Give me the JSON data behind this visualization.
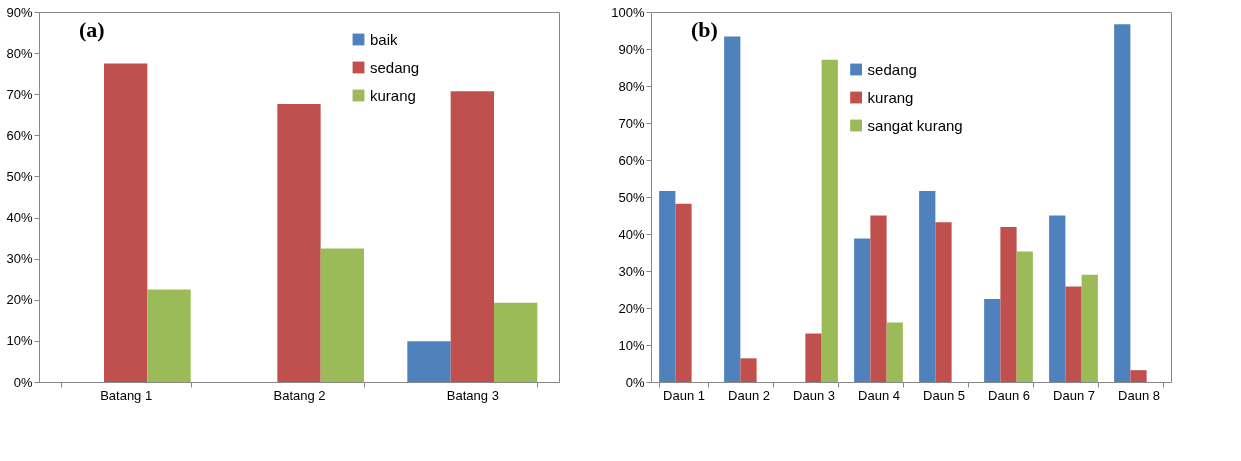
{
  "chart_data": [
    {
      "type": "bar",
      "annotations": [
        "(a)"
      ],
      "categories": [
        "Batang 1",
        "Batang 2",
        "Batang 3"
      ],
      "series": [
        {
          "name": "baik",
          "color": "#4f81bd",
          "values": [
            null,
            null,
            9.9
          ]
        },
        {
          "name": "sedang",
          "color": "#c0504d",
          "values": [
            77.5,
            67.6,
            70.7
          ]
        },
        {
          "name": "kurang",
          "color": "#9bbb59",
          "values": [
            22.5,
            32.5,
            19.3
          ]
        }
      ],
      "ylim": [
        0,
        90
      ],
      "yticks": [
        {
          "value": 0,
          "label": "0%"
        },
        {
          "value": 10,
          "label": "10%"
        },
        {
          "value": 20,
          "label": "20%"
        },
        {
          "value": 30,
          "label": "30%"
        },
        {
          "value": 40,
          "label": "40%"
        },
        {
          "value": 50,
          "label": "50%"
        },
        {
          "value": 60,
          "label": "60%"
        },
        {
          "value": 70,
          "label": "70%"
        },
        {
          "value": 80,
          "label": "80%"
        },
        {
          "value": 90,
          "label": "90%"
        }
      ],
      "grid": false,
      "legend": "top right"
    },
    {
      "type": "bar",
      "annotations": [
        "(b)"
      ],
      "categories": [
        "Daun 1",
        "Daun 2",
        "Daun 3",
        "Daun 4",
        "Daun 5",
        "Daun 6",
        "Daun 7",
        "Daun 8"
      ],
      "series": [
        {
          "name": "sedang",
          "color": "#4f81bd",
          "values": [
            51.6,
            93.4,
            null,
            38.8,
            51.6,
            22.4,
            45.0,
            96.7
          ]
        },
        {
          "name": "kurang",
          "color": "#c0504d",
          "values": [
            48.2,
            6.4,
            13.1,
            45.0,
            43.2,
            41.9,
            25.8,
            3.2
          ]
        },
        {
          "name": "sangat kurang",
          "color": "#9bbb59",
          "values": [
            null,
            null,
            87.1,
            16.1,
            null,
            35.3,
            29.0,
            null
          ]
        }
      ],
      "ylim": [
        0,
        100
      ],
      "yticks": [
        {
          "value": 0,
          "label": "0%"
        },
        {
          "value": 10,
          "label": "10%"
        },
        {
          "value": 20,
          "label": "20%"
        },
        {
          "value": 30,
          "label": "30%"
        },
        {
          "value": 40,
          "label": "40%"
        },
        {
          "value": 50,
          "label": "50%"
        },
        {
          "value": 60,
          "label": "60%"
        },
        {
          "value": 70,
          "label": "70%"
        },
        {
          "value": 80,
          "label": "80%"
        },
        {
          "value": 90,
          "label": "90%"
        },
        {
          "value": 100,
          "label": "100%"
        }
      ],
      "grid": false,
      "legend": "top"
    }
  ]
}
